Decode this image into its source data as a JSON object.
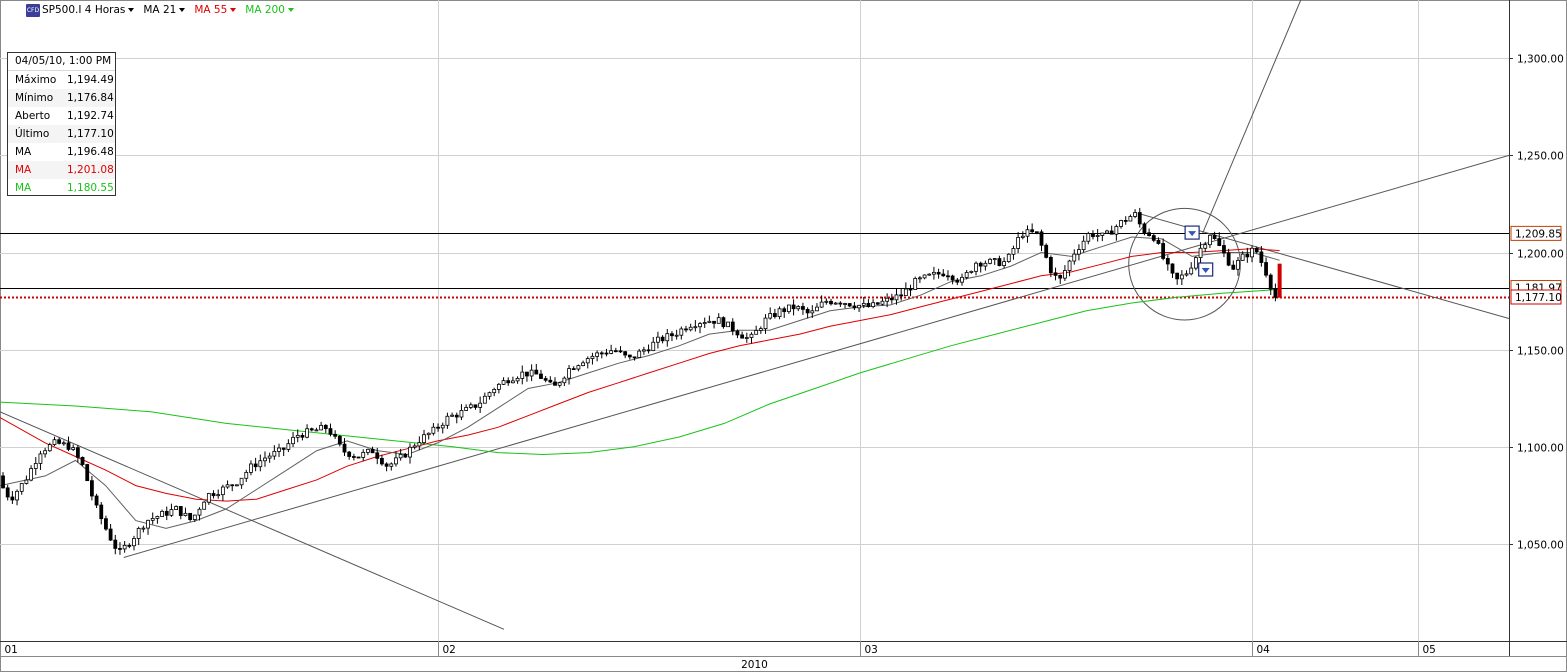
{
  "toolbar": {
    "logo_text": "CFD",
    "symbol": "SP500.I 4 Horas",
    "ma1": "MA 21",
    "ma2": "MA 55",
    "ma3": "MA 200"
  },
  "info_box": {
    "date": "04/05/10, 1:00 PM",
    "rows": [
      {
        "label": "Máximo",
        "value": "1,194.49"
      },
      {
        "label": "Mínimo",
        "value": "1,176.84"
      },
      {
        "label": "Aberto",
        "value": "1,192.74"
      },
      {
        "label": "Último",
        "value": "1,177.10"
      },
      {
        "label": "MA",
        "value": "1,196.48"
      },
      {
        "label": "MA",
        "value": "1,201.08"
      },
      {
        "label": "MA",
        "value": "1,180.55"
      }
    ]
  },
  "colors": {
    "candle": "#000000",
    "ma21": "#606060",
    "ma55": "#e00000",
    "ma200": "#19c319",
    "grid": "#d0d0d0",
    "price_marker": "#c04000"
  },
  "chart_data": {
    "type": "candlestick",
    "y_axis": {
      "min": 1000,
      "max": 1330,
      "ticks": [
        1050,
        1100,
        1150,
        1200,
        1250,
        1300
      ],
      "tick_labels": [
        "1,050.00",
        "1,100.00",
        "1,150.00",
        "1,200.00",
        "1,250.00",
        "1,300.00"
      ]
    },
    "x_axis": {
      "month_labels": [
        {
          "label": "01",
          "pos": 0.0
        },
        {
          "label": "02",
          "pos": 0.29
        },
        {
          "label": "03",
          "pos": 0.57
        },
        {
          "label": "04",
          "pos": 0.83
        },
        {
          "label": "05",
          "pos": 0.94
        }
      ],
      "year_label": "2010"
    },
    "price_labels": [
      {
        "label": "1,209.85",
        "value": 1209.85
      },
      {
        "label": "1,181.97",
        "value": 1181.97
      },
      {
        "label": "1,177.10",
        "value": 1177.1
      }
    ],
    "price_path": [
      [
        0.0,
        1085
      ],
      [
        0.01,
        1073
      ],
      [
        0.02,
        1083
      ],
      [
        0.03,
        1098
      ],
      [
        0.04,
        1102
      ],
      [
        0.05,
        1100
      ],
      [
        0.058,
        1090
      ],
      [
        0.066,
        1070
      ],
      [
        0.075,
        1055
      ],
      [
        0.082,
        1045
      ],
      [
        0.09,
        1052
      ],
      [
        0.1,
        1062
      ],
      [
        0.11,
        1065
      ],
      [
        0.12,
        1068
      ],
      [
        0.13,
        1062
      ],
      [
        0.14,
        1075
      ],
      [
        0.15,
        1078
      ],
      [
        0.16,
        1082
      ],
      [
        0.17,
        1090
      ],
      [
        0.18,
        1095
      ],
      [
        0.19,
        1098
      ],
      [
        0.2,
        1106
      ],
      [
        0.21,
        1108
      ],
      [
        0.22,
        1110
      ],
      [
        0.23,
        1098
      ],
      [
        0.24,
        1095
      ],
      [
        0.25,
        1098
      ],
      [
        0.26,
        1090
      ],
      [
        0.27,
        1095
      ],
      [
        0.28,
        1103
      ],
      [
        0.29,
        1108
      ],
      [
        0.3,
        1115
      ],
      [
        0.31,
        1118
      ],
      [
        0.32,
        1122
      ],
      [
        0.33,
        1130
      ],
      [
        0.34,
        1135
      ],
      [
        0.35,
        1138
      ],
      [
        0.36,
        1137
      ],
      [
        0.37,
        1130
      ],
      [
        0.38,
        1140
      ],
      [
        0.39,
        1145
      ],
      [
        0.4,
        1148
      ],
      [
        0.41,
        1150
      ],
      [
        0.42,
        1145
      ],
      [
        0.43,
        1150
      ],
      [
        0.44,
        1155
      ],
      [
        0.45,
        1158
      ],
      [
        0.46,
        1163
      ],
      [
        0.47,
        1165
      ],
      [
        0.48,
        1165
      ],
      [
        0.49,
        1160
      ],
      [
        0.5,
        1155
      ],
      [
        0.51,
        1165
      ],
      [
        0.52,
        1170
      ],
      [
        0.53,
        1172
      ],
      [
        0.54,
        1168
      ],
      [
        0.55,
        1175
      ],
      [
        0.56,
        1175
      ],
      [
        0.57,
        1173
      ],
      [
        0.58,
        1172
      ],
      [
        0.59,
        1175
      ],
      [
        0.6,
        1178
      ],
      [
        0.61,
        1185
      ],
      [
        0.62,
        1188
      ],
      [
        0.63,
        1190
      ],
      [
        0.64,
        1185
      ],
      [
        0.65,
        1195
      ],
      [
        0.66,
        1195
      ],
      [
        0.67,
        1195
      ],
      [
        0.68,
        1210
      ],
      [
        0.69,
        1210
      ],
      [
        0.7,
        1190
      ],
      [
        0.705,
        1185
      ],
      [
        0.715,
        1200
      ],
      [
        0.725,
        1210
      ],
      [
        0.735,
        1208
      ],
      [
        0.745,
        1215
      ],
      [
        0.755,
        1220
      ],
      [
        0.76,
        1212
      ],
      [
        0.768,
        1208
      ],
      [
        0.775,
        1195
      ],
      [
        0.782,
        1185
      ],
      [
        0.79,
        1190
      ],
      [
        0.797,
        1200
      ],
      [
        0.805,
        1210
      ],
      [
        0.812,
        1202
      ],
      [
        0.82,
        1192
      ],
      [
        0.827,
        1198
      ],
      [
        0.835,
        1202
      ],
      [
        0.842,
        1190
      ],
      [
        0.848,
        1177
      ]
    ],
    "ma21": [
      [
        0.0,
        1080
      ],
      [
        0.03,
        1085
      ],
      [
        0.05,
        1093
      ],
      [
        0.07,
        1080
      ],
      [
        0.09,
        1062
      ],
      [
        0.11,
        1058
      ],
      [
        0.13,
        1062
      ],
      [
        0.15,
        1068
      ],
      [
        0.17,
        1078
      ],
      [
        0.19,
        1088
      ],
      [
        0.21,
        1098
      ],
      [
        0.23,
        1103
      ],
      [
        0.25,
        1098
      ],
      [
        0.27,
        1096
      ],
      [
        0.29,
        1102
      ],
      [
        0.31,
        1110
      ],
      [
        0.33,
        1120
      ],
      [
        0.35,
        1130
      ],
      [
        0.37,
        1133
      ],
      [
        0.39,
        1138
      ],
      [
        0.41,
        1143
      ],
      [
        0.43,
        1147
      ],
      [
        0.45,
        1152
      ],
      [
        0.47,
        1158
      ],
      [
        0.49,
        1160
      ],
      [
        0.51,
        1160
      ],
      [
        0.53,
        1165
      ],
      [
        0.55,
        1170
      ],
      [
        0.57,
        1172
      ],
      [
        0.59,
        1173
      ],
      [
        0.61,
        1178
      ],
      [
        0.63,
        1185
      ],
      [
        0.65,
        1188
      ],
      [
        0.67,
        1193
      ],
      [
        0.69,
        1200
      ],
      [
        0.71,
        1198
      ],
      [
        0.73,
        1203
      ],
      [
        0.75,
        1208
      ],
      [
        0.77,
        1207
      ],
      [
        0.79,
        1198
      ],
      [
        0.81,
        1200
      ],
      [
        0.83,
        1200
      ],
      [
        0.848,
        1196
      ]
    ],
    "ma55": [
      [
        0.0,
        1115
      ],
      [
        0.03,
        1102
      ],
      [
        0.05,
        1095
      ],
      [
        0.07,
        1088
      ],
      [
        0.09,
        1080
      ],
      [
        0.11,
        1076
      ],
      [
        0.13,
        1073
      ],
      [
        0.15,
        1072
      ],
      [
        0.17,
        1073
      ],
      [
        0.19,
        1078
      ],
      [
        0.21,
        1083
      ],
      [
        0.23,
        1090
      ],
      [
        0.25,
        1095
      ],
      [
        0.27,
        1099
      ],
      [
        0.29,
        1103
      ],
      [
        0.31,
        1106
      ],
      [
        0.33,
        1110
      ],
      [
        0.35,
        1116
      ],
      [
        0.37,
        1122
      ],
      [
        0.39,
        1128
      ],
      [
        0.41,
        1133
      ],
      [
        0.43,
        1138
      ],
      [
        0.45,
        1143
      ],
      [
        0.47,
        1148
      ],
      [
        0.49,
        1152
      ],
      [
        0.51,
        1155
      ],
      [
        0.53,
        1158
      ],
      [
        0.55,
        1162
      ],
      [
        0.57,
        1165
      ],
      [
        0.59,
        1168
      ],
      [
        0.61,
        1172
      ],
      [
        0.63,
        1176
      ],
      [
        0.65,
        1180
      ],
      [
        0.67,
        1184
      ],
      [
        0.69,
        1188
      ],
      [
        0.71,
        1190
      ],
      [
        0.73,
        1194
      ],
      [
        0.75,
        1198
      ],
      [
        0.77,
        1200
      ],
      [
        0.79,
        1200
      ],
      [
        0.81,
        1201
      ],
      [
        0.83,
        1202
      ],
      [
        0.848,
        1201
      ]
    ],
    "ma200": [
      [
        0.0,
        1123
      ],
      [
        0.05,
        1121
      ],
      [
        0.1,
        1118
      ],
      [
        0.15,
        1112
      ],
      [
        0.2,
        1108
      ],
      [
        0.25,
        1104
      ],
      [
        0.3,
        1100
      ],
      [
        0.33,
        1097
      ],
      [
        0.36,
        1096
      ],
      [
        0.39,
        1097
      ],
      [
        0.42,
        1100
      ],
      [
        0.45,
        1105
      ],
      [
        0.48,
        1112
      ],
      [
        0.51,
        1122
      ],
      [
        0.54,
        1130
      ],
      [
        0.57,
        1138
      ],
      [
        0.6,
        1145
      ],
      [
        0.63,
        1152
      ],
      [
        0.66,
        1158
      ],
      [
        0.69,
        1164
      ],
      [
        0.72,
        1170
      ],
      [
        0.75,
        1174
      ],
      [
        0.78,
        1177
      ],
      [
        0.81,
        1179
      ],
      [
        0.848,
        1181
      ]
    ],
    "drawings": {
      "trendlines": [
        {
          "x1": 0.082,
          "y1": 1043,
          "x2": 1.0,
          "y2": 1250
        },
        {
          "x1": 0.0,
          "y1": 1118,
          "x2": 0.334,
          "y2": 1006
        },
        {
          "x1": 0.755,
          "y1": 1220,
          "x2": 1.0,
          "y2": 1166
        },
        {
          "x1": 0.797,
          "y1": 1210,
          "x2": 0.862,
          "y2": 1330
        }
      ],
      "h_lines": [
        1209.85,
        1181.97
      ],
      "dotted_line": 1177.1,
      "circle": {
        "cx": 0.785,
        "cy": 1194,
        "r": 0.037
      }
    }
  }
}
